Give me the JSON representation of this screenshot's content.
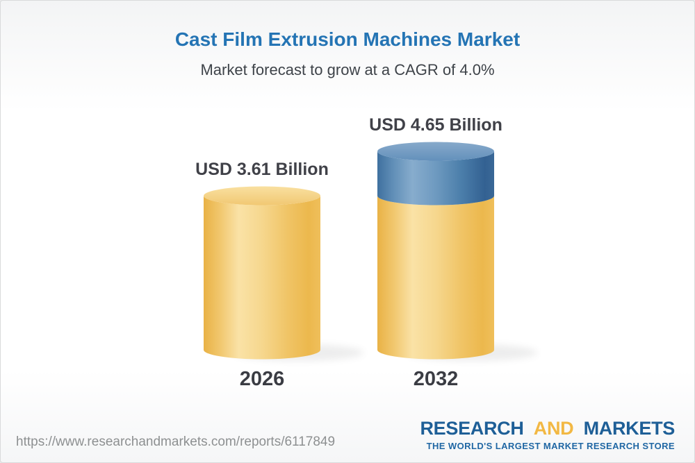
{
  "header": {
    "title": "Cast Film Extrusion Machines Market",
    "subtitle": "Market forecast to grow at a CAGR of 4.0%"
  },
  "chart_data": {
    "type": "bar",
    "style": "3d-cylinder",
    "title": "Cast Film Extrusion Machines Market",
    "subtitle": "Market forecast to grow at a CAGR of 4.0%",
    "unit": "USD Billion",
    "cagr_percent": 4.0,
    "categories": [
      "2026",
      "2032"
    ],
    "values": [
      3.61,
      4.65
    ],
    "value_labels": [
      "USD 3.61 Billion",
      "USD 4.65 Billion"
    ],
    "legend": "none",
    "grid": "off",
    "bars": [
      {
        "category": "2026",
        "total": 3.61,
        "segments": [
          {
            "name": "market-2026",
            "color": "yellow",
            "value": 3.61
          }
        ]
      },
      {
        "category": "2032",
        "total": 4.65,
        "segments": [
          {
            "name": "base-2026-level",
            "color": "yellow",
            "value": 3.61
          },
          {
            "name": "growth-2026-2032",
            "color": "blue",
            "value": 1.04
          }
        ]
      }
    ]
  },
  "footer": {
    "url": "https://www.researchandmarkets.com/reports/6117849",
    "logo": {
      "part1": "RESEARCH",
      "part2": "AND",
      "part3": "MARKETS",
      "tagline": "THE WORLD'S LARGEST MARKET RESEARCH STORE"
    }
  },
  "colors": {
    "title-blue": "#2474b4",
    "text-dark": "#3e4349",
    "label-dark": "#404148",
    "year-dark": "#3a3c43",
    "url-gray": "#8d9091",
    "logo-blue": "#1e5f97",
    "logo-gold": "#f2b843",
    "tagline-blue": "#2067a4",
    "bar-yellow": "#f0c466",
    "bar-blue": "#4a7dab"
  }
}
